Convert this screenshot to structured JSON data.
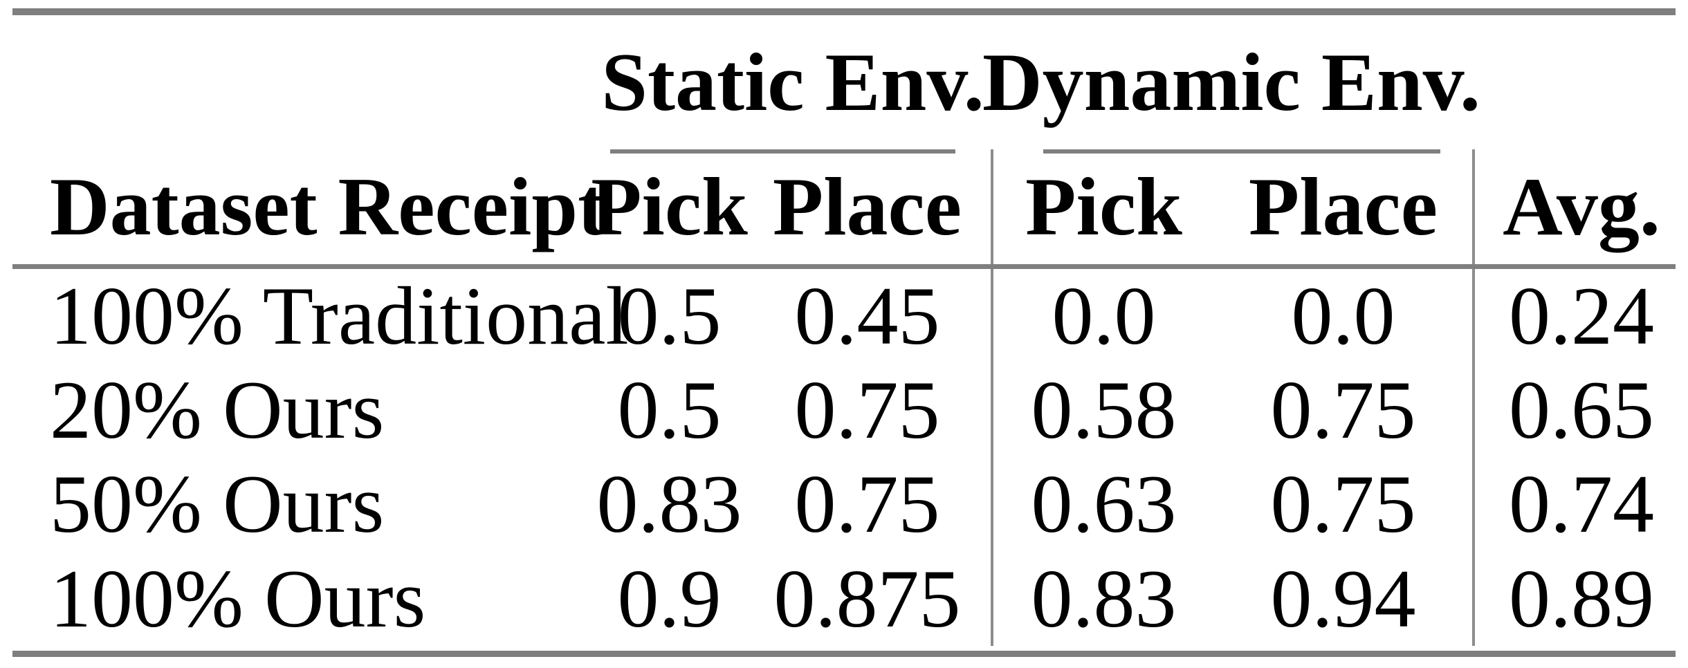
{
  "table": {
    "col_groups": {
      "static_label": "Static Env.",
      "dynamic_label": "Dynamic Env."
    },
    "headers": {
      "dataset": "Dataset Receipt",
      "static_pick": "Pick",
      "static_place": "Place",
      "dynamic_pick": "Pick",
      "dynamic_place": "Place",
      "avg": "Avg."
    },
    "rows": [
      {
        "label": "100% Traditional",
        "static_pick": "0.5",
        "static_place": "0.45",
        "dynamic_pick": "0.0",
        "dynamic_place": "0.0",
        "avg": "0.24"
      },
      {
        "label": "20% Ours",
        "static_pick": "0.5",
        "static_place": "0.75",
        "dynamic_pick": "0.58",
        "dynamic_place": "0.75",
        "avg": "0.65"
      },
      {
        "label": "50% Ours",
        "static_pick": "0.83",
        "static_place": "0.75",
        "dynamic_pick": "0.63",
        "dynamic_place": "0.75",
        "avg": "0.74"
      },
      {
        "label": "100% Ours",
        "static_pick": "0.9",
        "static_place": "0.875",
        "dynamic_pick": "0.83",
        "dynamic_place": "0.94",
        "avg": "0.89"
      }
    ]
  },
  "colors": {
    "rule_gray": "#7f7f7f",
    "text": "#000000",
    "background": "#ffffff"
  }
}
